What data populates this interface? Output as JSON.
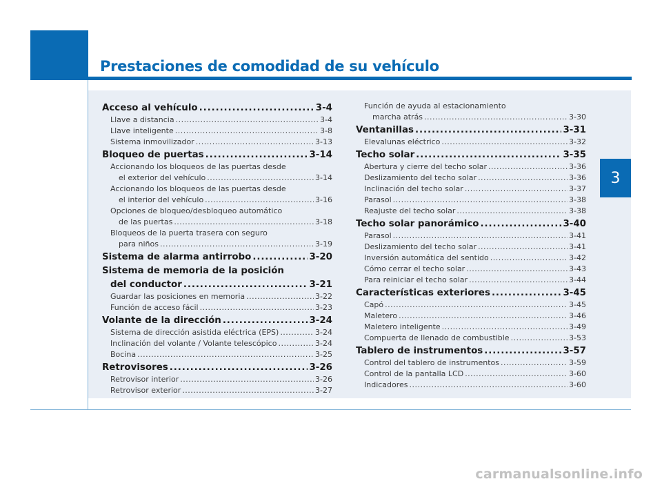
{
  "header": {
    "title": "Prestaciones de comodidad de su vehículo"
  },
  "chapter_tab": "3",
  "watermark": "carmanualsonline.info",
  "left_column": [
    {
      "type": "section",
      "label": "Acceso al vehículo",
      "page": "3-4"
    },
    {
      "type": "sub",
      "label": "Llave a distancia",
      "page": "3-4"
    },
    {
      "type": "sub",
      "label": "Llave inteligente",
      "page": "3-8"
    },
    {
      "type": "sub",
      "label": "Sistema inmovilizador",
      "page": "3-13"
    },
    {
      "type": "section",
      "label": "Bloqueo de puertas",
      "page": "3-14"
    },
    {
      "type": "sub-pre",
      "label": "Accionando los bloqueos de las puertas desde"
    },
    {
      "type": "sub-cont",
      "label": "el exterior del vehículo",
      "page": "3-14"
    },
    {
      "type": "sub-pre",
      "label": "Accionando los bloqueos de las puertas desde"
    },
    {
      "type": "sub-cont",
      "label": "el interior del vehículo",
      "page": "3-16"
    },
    {
      "type": "sub-pre",
      "label": "Opciones de bloqueo/desbloqueo automático"
    },
    {
      "type": "sub-cont",
      "label": "de las puertas",
      "page": "3-18"
    },
    {
      "type": "sub-pre",
      "label": "Bloqueos de la puerta trasera con seguro"
    },
    {
      "type": "sub-cont",
      "label": "para niños",
      "page": "3-19"
    },
    {
      "type": "section",
      "label": "Sistema de alarma antirrobo",
      "page": "3-20"
    },
    {
      "type": "section-pre",
      "label": "Sistema de memoria de la posición"
    },
    {
      "type": "section-cont",
      "label": "del conductor",
      "page": "3-21"
    },
    {
      "type": "sub",
      "label": "Guardar las posiciones en memoria",
      "page": "3-22"
    },
    {
      "type": "sub",
      "label": "Función de acceso fácil",
      "page": "3-23"
    },
    {
      "type": "section",
      "label": "Volante de la dirección",
      "page": "3-24"
    },
    {
      "type": "sub",
      "label": "Sistema de dirección asistida eléctrica (EPS)",
      "page": "3-24"
    },
    {
      "type": "sub",
      "label": "Inclinación del volante / Volante telescópico",
      "page": "3-24"
    },
    {
      "type": "sub",
      "label": "Bocina",
      "page": "3-25"
    },
    {
      "type": "section",
      "label": "Retrovisores",
      "page": "3-26"
    },
    {
      "type": "sub",
      "label": "Retrovisor interior",
      "page": "3-26"
    },
    {
      "type": "sub",
      "label": "Retrovisor exterior",
      "page": "3-27"
    }
  ],
  "right_column": [
    {
      "type": "sub-pre",
      "label": "Función de ayuda al estacionamiento"
    },
    {
      "type": "sub-cont",
      "label": "marcha atrás",
      "page": "3-30"
    },
    {
      "type": "section",
      "label": "Ventanillas",
      "page": "3-31"
    },
    {
      "type": "sub",
      "label": "Elevalunas eléctrico",
      "page": "3-32"
    },
    {
      "type": "section",
      "label": "Techo solar",
      "page": "3-35"
    },
    {
      "type": "sub",
      "label": "Abertura y cierre del techo solar",
      "page": "3-36"
    },
    {
      "type": "sub",
      "label": "Deslizamiento del techo solar",
      "page": "3-36"
    },
    {
      "type": "sub",
      "label": "Inclinación del techo solar",
      "page": "3-37"
    },
    {
      "type": "sub",
      "label": "Parasol",
      "page": "3-38"
    },
    {
      "type": "sub",
      "label": "Reajuste del techo solar",
      "page": "3-38"
    },
    {
      "type": "section",
      "label": "Techo solar panorámico",
      "page": "3-40"
    },
    {
      "type": "sub",
      "label": "Parasol",
      "page": "3-41"
    },
    {
      "type": "sub",
      "label": "Deslizamiento del techo solar",
      "page": "3-41"
    },
    {
      "type": "sub",
      "label": "Inversión automática del sentido",
      "page": "3-42"
    },
    {
      "type": "sub",
      "label": "Cómo cerrar el techo solar",
      "page": "3-43"
    },
    {
      "type": "sub",
      "label": "Para reiniciar el techo solar",
      "page": "3-44"
    },
    {
      "type": "section",
      "label": "Características exteriores",
      "page": "3-45"
    },
    {
      "type": "sub",
      "label": "Capó",
      "page": "3-45"
    },
    {
      "type": "sub",
      "label": "Maletero",
      "page": "3-46"
    },
    {
      "type": "sub",
      "label": "Maletero inteligente",
      "page": "3-49"
    },
    {
      "type": "sub",
      "label": "Compuerta de llenado de combustible",
      "page": "3-53"
    },
    {
      "type": "section",
      "label": "Tablero de instrumentos",
      "page": "3-57"
    },
    {
      "type": "sub",
      "label": "Control del tablero de instrumentos",
      "page": "3-59"
    },
    {
      "type": "sub",
      "label": "Control de la pantalla LCD",
      "page": "3-60"
    },
    {
      "type": "sub",
      "label": "Indicadores",
      "page": "3-60"
    }
  ]
}
